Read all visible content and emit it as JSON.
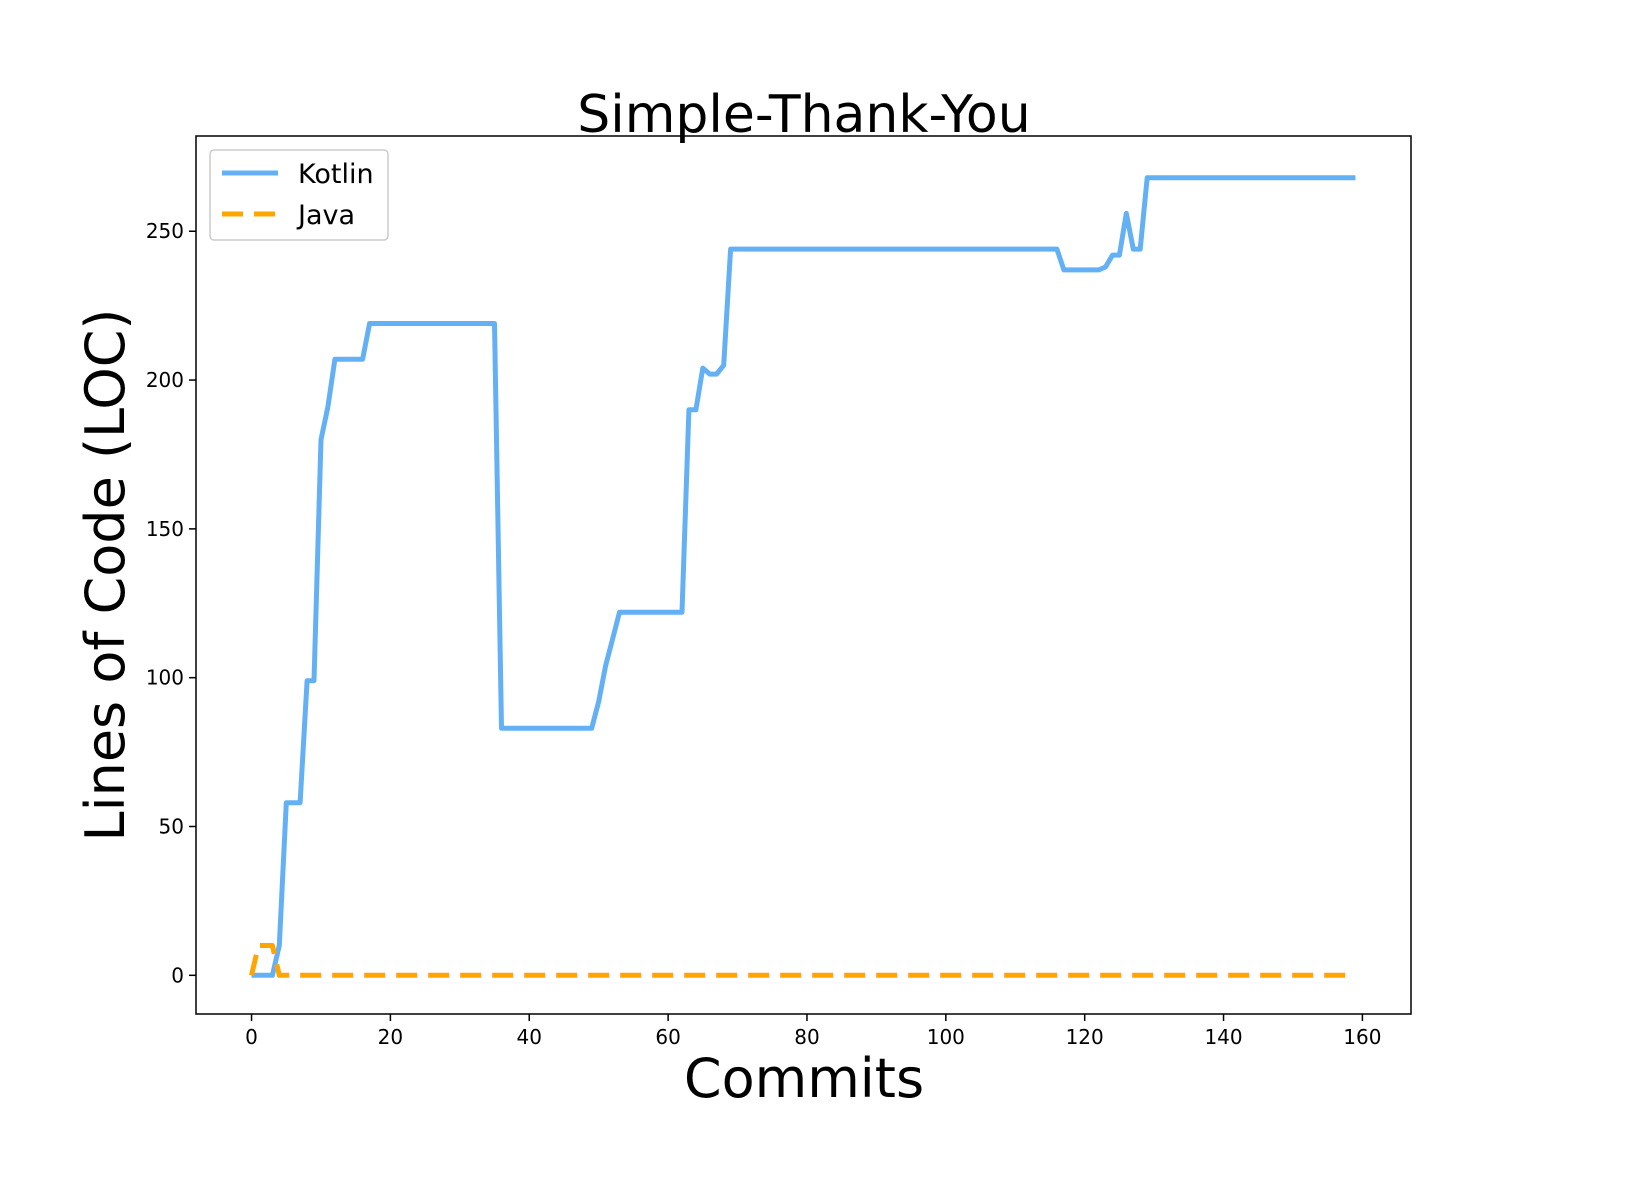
{
  "chart_data": {
    "type": "line",
    "title": "Simple-Thank-You",
    "xlabel": "Commits",
    "ylabel": "Lines of Code (LOC)",
    "xlim": [
      -8,
      167
    ],
    "ylim": [
      -13,
      282
    ],
    "xticks": [
      0,
      20,
      40,
      60,
      80,
      100,
      120,
      140,
      160
    ],
    "yticks": [
      0,
      50,
      100,
      150,
      200,
      250
    ],
    "legend_position": "top-left",
    "grid": false,
    "series": [
      {
        "name": "Kotlin",
        "color": "#64b0f5",
        "style": "solid",
        "x": [
          0,
          1,
          2,
          3,
          4,
          5,
          6,
          7,
          8,
          9,
          10,
          11,
          12,
          13,
          14,
          15,
          16,
          17,
          18,
          20,
          25,
          30,
          35,
          36,
          37,
          40,
          45,
          49,
          50,
          51,
          52,
          53,
          54,
          55,
          58,
          60,
          62,
          63,
          64,
          65,
          66,
          67,
          68,
          69,
          70,
          80,
          90,
          100,
          110,
          116,
          117,
          118,
          120,
          122,
          123,
          124,
          125,
          126,
          127,
          128,
          129,
          130,
          140,
          150,
          159
        ],
        "y": [
          0,
          0,
          0,
          0,
          10,
          58,
          58,
          58,
          99,
          99,
          180,
          191,
          207,
          207,
          207,
          207,
          207,
          219,
          219,
          219,
          219,
          219,
          219,
          83,
          83,
          83,
          83,
          83,
          92,
          104,
          113,
          122,
          122,
          122,
          122,
          122,
          122,
          190,
          190,
          204,
          202,
          202,
          205,
          244,
          244,
          244,
          244,
          244,
          244,
          244,
          237,
          237,
          237,
          237,
          238,
          242,
          242,
          256,
          244,
          244,
          268,
          268,
          268,
          268,
          268
        ]
      },
      {
        "name": "Java",
        "color": "#ffa500",
        "style": "dashed",
        "x": [
          0,
          1,
          2,
          3,
          4,
          5,
          10,
          20,
          40,
          60,
          80,
          100,
          120,
          140,
          159
        ],
        "y": [
          0,
          10,
          10,
          10,
          0,
          0,
          0,
          0,
          0,
          0,
          0,
          0,
          0,
          0,
          0
        ]
      }
    ]
  }
}
